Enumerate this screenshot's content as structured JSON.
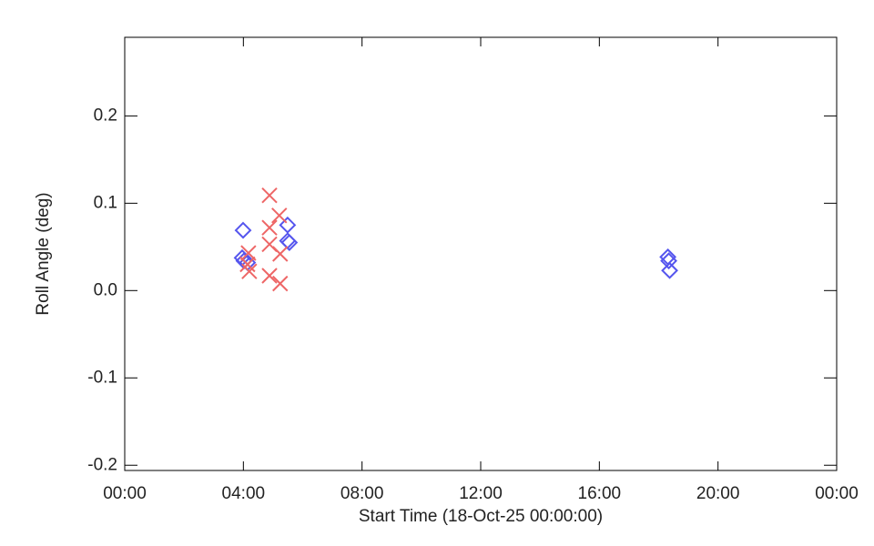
{
  "chart_data": {
    "type": "scatter",
    "x_label": "Start Time (18-Oct-25 00:00:00)",
    "y_label": "Roll Angle (deg)",
    "xlim": [
      0,
      24
    ],
    "ylim": [
      -0.206,
      0.29
    ],
    "xticks": [
      {
        "value": 0,
        "label": "00:00"
      },
      {
        "value": 4,
        "label": "04:00"
      },
      {
        "value": 8,
        "label": "08:00"
      },
      {
        "value": 12,
        "label": "12:00"
      },
      {
        "value": 16,
        "label": "16:00"
      },
      {
        "value": 20,
        "label": "20:00"
      },
      {
        "value": 24,
        "label": "00:00"
      }
    ],
    "yticks": [
      -0.2,
      -0.1,
      {
        "value": 0,
        "label": "0.0"
      },
      0.1,
      0.2
    ],
    "series": [
      {
        "color": "#5555ee",
        "marker": "diamond",
        "x": [
          3.99,
          3.96,
          4.02,
          4.14,
          5.49,
          5.49,
          5.55,
          18.31,
          18.34,
          18.37
        ],
        "values": [
          0.069,
          0.0375,
          0.034,
          0.032,
          0.075,
          0.057,
          0.055,
          0.0385,
          0.034,
          0.023
        ]
      },
      {
        "color": "#ee6666",
        "marker": "x",
        "x": [
          4.88,
          4.88,
          5.21,
          4.88,
          5.24,
          4.17,
          4.2,
          4.14,
          4.88,
          5.24
        ],
        "values": [
          0.109,
          0.072,
          0.086,
          0.053,
          0.042,
          0.043,
          0.022,
          0.03,
          0.017,
          0.008
        ]
      }
    ]
  }
}
